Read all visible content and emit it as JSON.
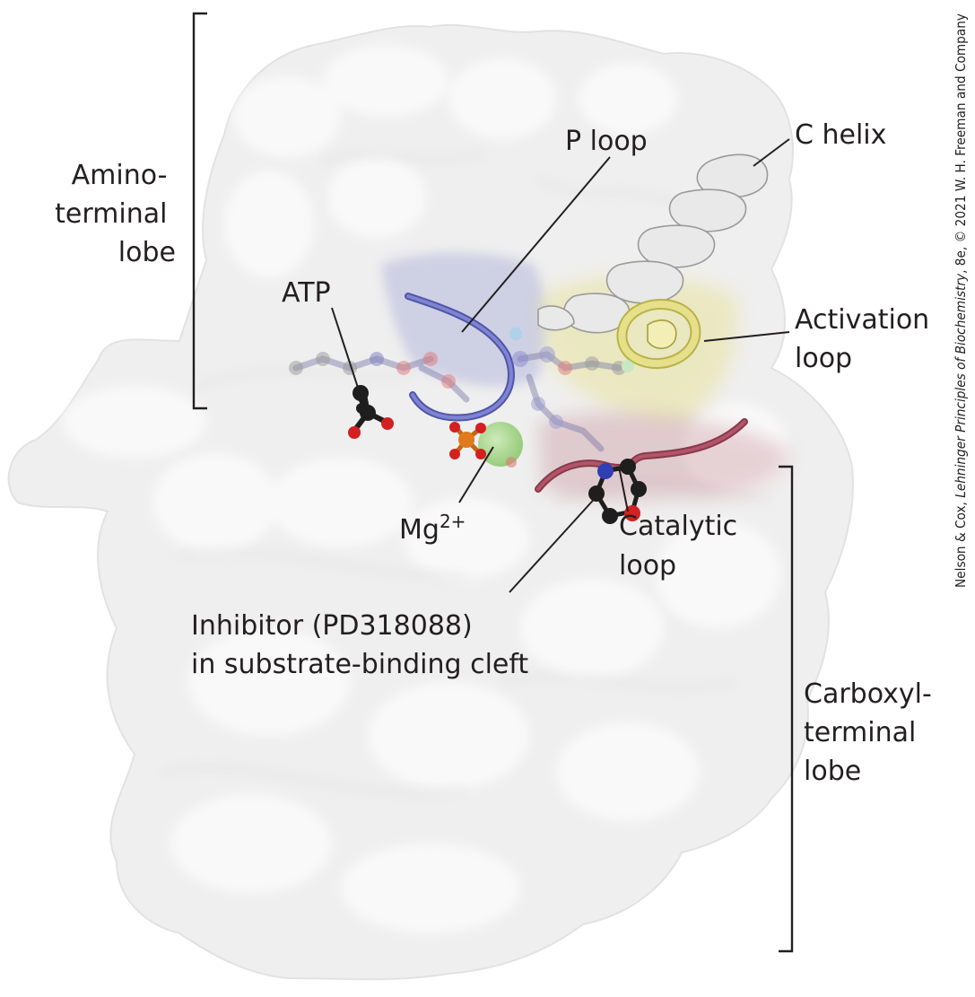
{
  "labels": {
    "amino_lobe": [
      "Amino-",
      "terminal",
      "lobe"
    ],
    "carboxyl_lobe": [
      "Carboxyl-",
      "terminal",
      "lobe"
    ],
    "atp": "ATP",
    "p_loop": "P loop",
    "c_helix": "C helix",
    "activation_loop": [
      "Activation",
      "loop"
    ],
    "mg": "Mg",
    "mg_charge": "2+",
    "catalytic_loop": [
      "Catalytic",
      "loop"
    ],
    "inhibitor": [
      "Inhibitor (PD318088)",
      "in substrate-binding cleft"
    ]
  },
  "credit": {
    "prefix": "Nelson & Cox, ",
    "book": "Lehninger Principles of Biochemistry",
    "suffix": ", 8e, © 2021 W. H. Freeman and Company"
  },
  "colors": {
    "surface": "#efefef",
    "p_loop": "#6f74c4",
    "activation_loop": "#e6e08a",
    "catalytic_loop": "#a8485a",
    "mg_ion": "#8fc86f",
    "phosphorus": "#e07a1c",
    "oxygen": "#d42020",
    "carbon": "#1e1e1e",
    "nitrogen": "#2f3fb5"
  }
}
